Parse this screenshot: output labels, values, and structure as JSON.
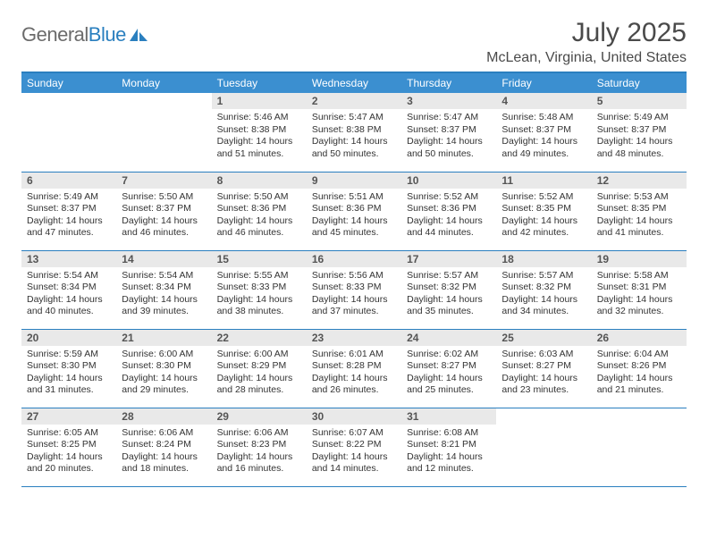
{
  "brand": {
    "part1": "General",
    "part2": "Blue"
  },
  "title": "July 2025",
  "location": "McLean, Virginia, United States",
  "colors": {
    "header_bg": "#3b8fd0",
    "header_text": "#ffffff",
    "rule": "#2a7fbf",
    "daynum_bg": "#e9e9e9",
    "body_text": "#333333",
    "logo_grey": "#6b6b6b",
    "logo_blue": "#2a7fbf"
  },
  "weekdays": [
    "Sunday",
    "Monday",
    "Tuesday",
    "Wednesday",
    "Thursday",
    "Friday",
    "Saturday"
  ],
  "weeks": [
    [
      null,
      null,
      {
        "n": "1",
        "sr": "5:46 AM",
        "ss": "8:38 PM",
        "dl": "14 hours and 51 minutes."
      },
      {
        "n": "2",
        "sr": "5:47 AM",
        "ss": "8:38 PM",
        "dl": "14 hours and 50 minutes."
      },
      {
        "n": "3",
        "sr": "5:47 AM",
        "ss": "8:37 PM",
        "dl": "14 hours and 50 minutes."
      },
      {
        "n": "4",
        "sr": "5:48 AM",
        "ss": "8:37 PM",
        "dl": "14 hours and 49 minutes."
      },
      {
        "n": "5",
        "sr": "5:49 AM",
        "ss": "8:37 PM",
        "dl": "14 hours and 48 minutes."
      }
    ],
    [
      {
        "n": "6",
        "sr": "5:49 AM",
        "ss": "8:37 PM",
        "dl": "14 hours and 47 minutes."
      },
      {
        "n": "7",
        "sr": "5:50 AM",
        "ss": "8:37 PM",
        "dl": "14 hours and 46 minutes."
      },
      {
        "n": "8",
        "sr": "5:50 AM",
        "ss": "8:36 PM",
        "dl": "14 hours and 46 minutes."
      },
      {
        "n": "9",
        "sr": "5:51 AM",
        "ss": "8:36 PM",
        "dl": "14 hours and 45 minutes."
      },
      {
        "n": "10",
        "sr": "5:52 AM",
        "ss": "8:36 PM",
        "dl": "14 hours and 44 minutes."
      },
      {
        "n": "11",
        "sr": "5:52 AM",
        "ss": "8:35 PM",
        "dl": "14 hours and 42 minutes."
      },
      {
        "n": "12",
        "sr": "5:53 AM",
        "ss": "8:35 PM",
        "dl": "14 hours and 41 minutes."
      }
    ],
    [
      {
        "n": "13",
        "sr": "5:54 AM",
        "ss": "8:34 PM",
        "dl": "14 hours and 40 minutes."
      },
      {
        "n": "14",
        "sr": "5:54 AM",
        "ss": "8:34 PM",
        "dl": "14 hours and 39 minutes."
      },
      {
        "n": "15",
        "sr": "5:55 AM",
        "ss": "8:33 PM",
        "dl": "14 hours and 38 minutes."
      },
      {
        "n": "16",
        "sr": "5:56 AM",
        "ss": "8:33 PM",
        "dl": "14 hours and 37 minutes."
      },
      {
        "n": "17",
        "sr": "5:57 AM",
        "ss": "8:32 PM",
        "dl": "14 hours and 35 minutes."
      },
      {
        "n": "18",
        "sr": "5:57 AM",
        "ss": "8:32 PM",
        "dl": "14 hours and 34 minutes."
      },
      {
        "n": "19",
        "sr": "5:58 AM",
        "ss": "8:31 PM",
        "dl": "14 hours and 32 minutes."
      }
    ],
    [
      {
        "n": "20",
        "sr": "5:59 AM",
        "ss": "8:30 PM",
        "dl": "14 hours and 31 minutes."
      },
      {
        "n": "21",
        "sr": "6:00 AM",
        "ss": "8:30 PM",
        "dl": "14 hours and 29 minutes."
      },
      {
        "n": "22",
        "sr": "6:00 AM",
        "ss": "8:29 PM",
        "dl": "14 hours and 28 minutes."
      },
      {
        "n": "23",
        "sr": "6:01 AM",
        "ss": "8:28 PM",
        "dl": "14 hours and 26 minutes."
      },
      {
        "n": "24",
        "sr": "6:02 AM",
        "ss": "8:27 PM",
        "dl": "14 hours and 25 minutes."
      },
      {
        "n": "25",
        "sr": "6:03 AM",
        "ss": "8:27 PM",
        "dl": "14 hours and 23 minutes."
      },
      {
        "n": "26",
        "sr": "6:04 AM",
        "ss": "8:26 PM",
        "dl": "14 hours and 21 minutes."
      }
    ],
    [
      {
        "n": "27",
        "sr": "6:05 AM",
        "ss": "8:25 PM",
        "dl": "14 hours and 20 minutes."
      },
      {
        "n": "28",
        "sr": "6:06 AM",
        "ss": "8:24 PM",
        "dl": "14 hours and 18 minutes."
      },
      {
        "n": "29",
        "sr": "6:06 AM",
        "ss": "8:23 PM",
        "dl": "14 hours and 16 minutes."
      },
      {
        "n": "30",
        "sr": "6:07 AM",
        "ss": "8:22 PM",
        "dl": "14 hours and 14 minutes."
      },
      {
        "n": "31",
        "sr": "6:08 AM",
        "ss": "8:21 PM",
        "dl": "14 hours and 12 minutes."
      },
      null,
      null
    ]
  ],
  "labels": {
    "sunrise": "Sunrise:",
    "sunset": "Sunset:",
    "daylight": "Daylight:"
  }
}
